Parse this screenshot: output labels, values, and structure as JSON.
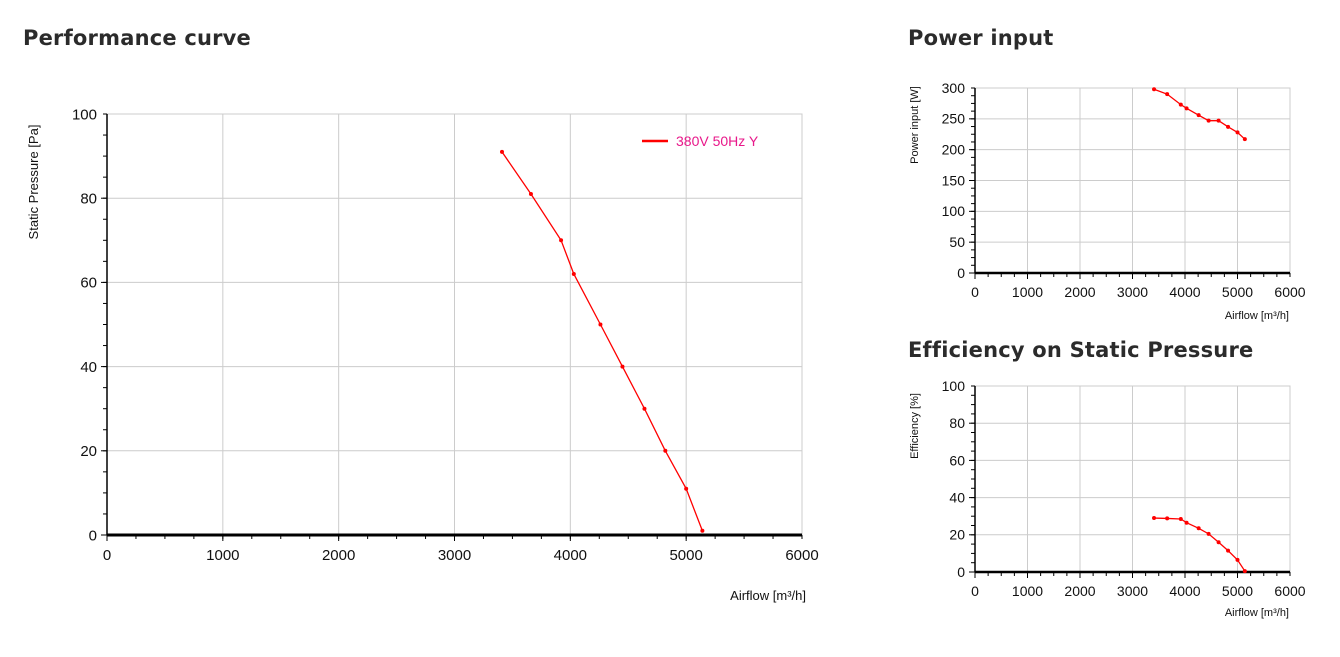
{
  "headings": {
    "performance": "Performance curve",
    "power": "Power input",
    "efficiency": "Efficiency on Static Pressure"
  },
  "colors": {
    "series": "#ff0000",
    "legend_text": "#e8188a",
    "grid": "#cccccc",
    "axis": "#000000"
  },
  "chart_data": [
    {
      "id": "performance",
      "type": "line",
      "xlabel": "Airflow [m³/h]",
      "ylabel": "Static Pressure [Pa]",
      "xlim": [
        0,
        6000
      ],
      "ylim": [
        0,
        100
      ],
      "xticks": [
        0,
        1000,
        2000,
        3000,
        4000,
        5000,
        6000
      ],
      "yticks": [
        0,
        20,
        40,
        60,
        80,
        100
      ],
      "grid": true,
      "legend": "top-right",
      "series": [
        {
          "name": "380V 50Hz Y",
          "x": [
            3410,
            3660,
            3920,
            4030,
            4260,
            4450,
            4640,
            4820,
            5000,
            5140
          ],
          "y": [
            91,
            81,
            70,
            62,
            50,
            40,
            30,
            20,
            11,
            1
          ]
        }
      ]
    },
    {
      "id": "power",
      "type": "line",
      "xlabel": "Airflow [m³/h]",
      "ylabel": "Power input [W]",
      "xlim": [
        0,
        6000
      ],
      "ylim": [
        0,
        300
      ],
      "xticks": [
        0,
        1000,
        2000,
        3000,
        4000,
        5000,
        6000
      ],
      "yticks": [
        0,
        50,
        100,
        150,
        200,
        250,
        300
      ],
      "grid": true,
      "series": [
        {
          "name": "",
          "x": [
            3410,
            3660,
            3920,
            4030,
            4260,
            4450,
            4640,
            4820,
            5000,
            5140
          ],
          "y": [
            298,
            290,
            273,
            267,
            256,
            247,
            247,
            237,
            228,
            217
          ]
        }
      ]
    },
    {
      "id": "efficiency",
      "type": "line",
      "xlabel": "Airflow [m³/h]",
      "ylabel": "Efficiency [%]",
      "xlim": [
        0,
        6000
      ],
      "ylim": [
        0,
        100
      ],
      "xticks": [
        0,
        1000,
        2000,
        3000,
        4000,
        5000,
        6000
      ],
      "yticks": [
        0,
        20,
        40,
        60,
        80,
        100
      ],
      "grid": true,
      "series": [
        {
          "name": "",
          "x": [
            3410,
            3660,
            3920,
            4030,
            4260,
            4450,
            4640,
            4820,
            5000,
            5140
          ],
          "y": [
            29,
            28.8,
            28.5,
            26.5,
            23.5,
            20.5,
            16,
            11.5,
            6.5,
            0.5
          ]
        }
      ]
    }
  ]
}
